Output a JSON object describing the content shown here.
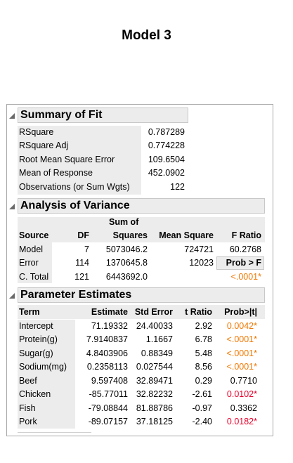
{
  "title": "Model 3",
  "summary": {
    "header": "Summary of Fit",
    "rows": [
      {
        "label": "RSquare",
        "value": "0.787289"
      },
      {
        "label": "RSquare Adj",
        "value": "0.774228"
      },
      {
        "label": "Root Mean Square Error",
        "value": "109.6504"
      },
      {
        "label": "Mean of Response",
        "value": "452.0902"
      },
      {
        "label": "Observations (or Sum Wgts)",
        "value": "122"
      }
    ]
  },
  "anova": {
    "header": "Analysis of Variance",
    "cols": {
      "source": "Source",
      "df": "DF",
      "ss_top": "Sum of",
      "ss": "Squares",
      "ms": "Mean Square",
      "f": "F Ratio"
    },
    "rows": [
      {
        "source": "Model",
        "df": "7",
        "ss": "5073046.2",
        "ms": "724721",
        "f": "60.2768"
      },
      {
        "source": "Error",
        "df": "114",
        "ss": "1370645.8",
        "ms": "12023",
        "f": "Prob > F"
      },
      {
        "source": "C. Total",
        "df": "121",
        "ss": "6443692.0",
        "ms": "",
        "f": "<.0001*"
      }
    ]
  },
  "params": {
    "header": "Parameter Estimates",
    "cols": {
      "term": "Term",
      "est": "Estimate",
      "se": "Std Error",
      "t": "t Ratio",
      "p": "Prob>|t|"
    },
    "rows": [
      {
        "term": "Intercept",
        "est": "71.19332",
        "se": "24.40033",
        "t": "2.92",
        "p": "0.0042*"
      },
      {
        "term": "Protein(g)",
        "est": "7.9140837",
        "se": "1.1667",
        "t": "6.78",
        "p": "<.0001*"
      },
      {
        "term": "Sugar(g)",
        "est": "4.8403906",
        "se": "0.88349",
        "t": "5.48",
        "p": "<.0001*"
      },
      {
        "term": "Sodium(mg)",
        "est": "0.2358113",
        "se": "0.027544",
        "t": "8.56",
        "p": "<.0001*"
      },
      {
        "term": "Beef",
        "est": "9.597408",
        "se": "32.89471",
        "t": "0.29",
        "p": "0.7710"
      },
      {
        "term": "Chicken",
        "est": "-85.77011",
        "se": "32.82232",
        "t": "-2.61",
        "p": "0.0102*"
      },
      {
        "term": "Fish",
        "est": "-79.08844",
        "se": "81.88786",
        "t": "-0.97",
        "p": "0.3362"
      },
      {
        "term": "Pork",
        "est": "-89.07157",
        "se": "37.18125",
        "t": "-2.40",
        "p": "0.0182*"
      }
    ]
  }
}
